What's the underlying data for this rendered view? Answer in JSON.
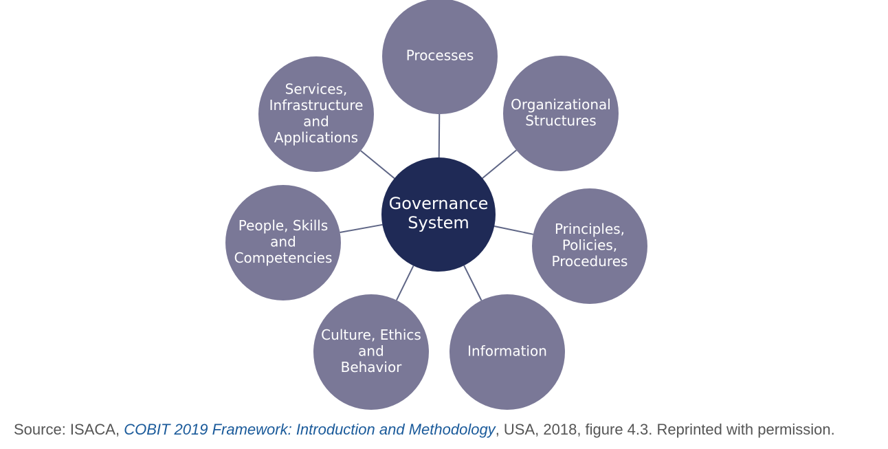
{
  "diagram": {
    "center": {
      "lines": [
        "Governance",
        "System"
      ]
    },
    "nodes": [
      {
        "id": "processes",
        "lines": [
          "Processes"
        ]
      },
      {
        "id": "organizational-structures",
        "lines": [
          "Organizational",
          "Structures"
        ]
      },
      {
        "id": "principles-policies-procedures",
        "lines": [
          "Principles,",
          "Policies,",
          "Procedures"
        ]
      },
      {
        "id": "information",
        "lines": [
          "Information"
        ]
      },
      {
        "id": "culture-ethics-behavior",
        "lines": [
          "Culture, Ethics",
          "and",
          "Behavior"
        ]
      },
      {
        "id": "people-skills-competencies",
        "lines": [
          "People, Skills",
          "and",
          "Competencies"
        ]
      },
      {
        "id": "services-infrastructure-applications",
        "lines": [
          "Services,",
          "Infrastructure",
          "and",
          "Applications"
        ]
      }
    ],
    "colors": {
      "center_fill": "#1f2a56",
      "node_fill": "#7a7897",
      "connector": "#5e6585",
      "node_text": "#ffffff"
    }
  },
  "caption": {
    "prefix": "Source: ISACA, ",
    "title": "COBIT 2019 Framework: Introduction and Methodology",
    "suffix": ", USA, 2018, figure 4.3. Reprinted with permission.",
    "text_color": "#555555",
    "link_color": "#1a5a9a"
  }
}
